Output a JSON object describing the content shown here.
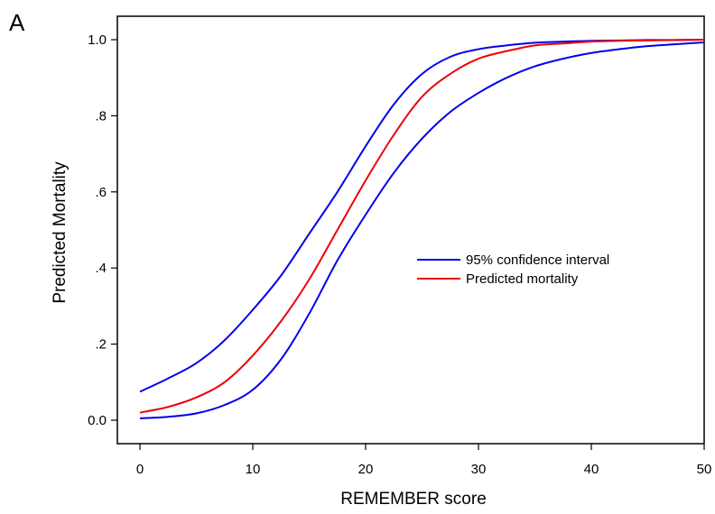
{
  "panel_label": "A",
  "chart_data": {
    "type": "line",
    "xlabel": "REMEMBER score",
    "ylabel": "Predicted Mortality",
    "xlim": [
      0,
      50
    ],
    "ylim": [
      0,
      1.0
    ],
    "x_ticks": [
      0,
      10,
      20,
      30,
      40,
      50
    ],
    "x_tick_labels": [
      "0",
      "10",
      "20",
      "30",
      "40",
      "50"
    ],
    "y_ticks": [
      0,
      0.2,
      0.4,
      0.6,
      0.8,
      1.0
    ],
    "y_tick_labels": [
      "0.0",
      ".2",
      ".4",
      ".6",
      ".8",
      "1.0"
    ],
    "grid": false,
    "legend_position": "center-right",
    "legend": [
      {
        "label": "95% confidence interval",
        "color": "#0000ee"
      },
      {
        "label": "Predicted mortality",
        "color": "#ee0000"
      }
    ],
    "x": [
      0,
      2.5,
      5,
      7.5,
      10,
      12.5,
      15,
      17.5,
      20,
      22.5,
      25,
      27.5,
      30,
      32.5,
      35,
      37.5,
      40,
      42.5,
      45,
      47.5,
      50
    ],
    "series": [
      {
        "name": "95% confidence interval",
        "color": "#0000ee",
        "values": [
          0.075,
          0.11,
          0.15,
          0.21,
          0.29,
          0.38,
          0.49,
          0.6,
          0.72,
          0.83,
          0.91,
          0.955,
          0.975,
          0.985,
          0.992,
          0.995,
          0.997,
          0.998,
          0.999,
          0.999,
          1.0
        ]
      },
      {
        "name": "Predicted mortality",
        "color": "#ee0000",
        "values": [
          0.02,
          0.035,
          0.06,
          0.1,
          0.17,
          0.26,
          0.37,
          0.5,
          0.63,
          0.75,
          0.85,
          0.91,
          0.95,
          0.97,
          0.985,
          0.99,
          0.995,
          0.997,
          0.998,
          0.999,
          1.0
        ]
      },
      {
        "name": "95% confidence interval",
        "color": "#0000ee",
        "values": [
          0.005,
          0.009,
          0.018,
          0.04,
          0.08,
          0.16,
          0.28,
          0.42,
          0.54,
          0.65,
          0.74,
          0.81,
          0.86,
          0.9,
          0.93,
          0.95,
          0.965,
          0.975,
          0.983,
          0.988,
          0.993
        ]
      }
    ]
  }
}
